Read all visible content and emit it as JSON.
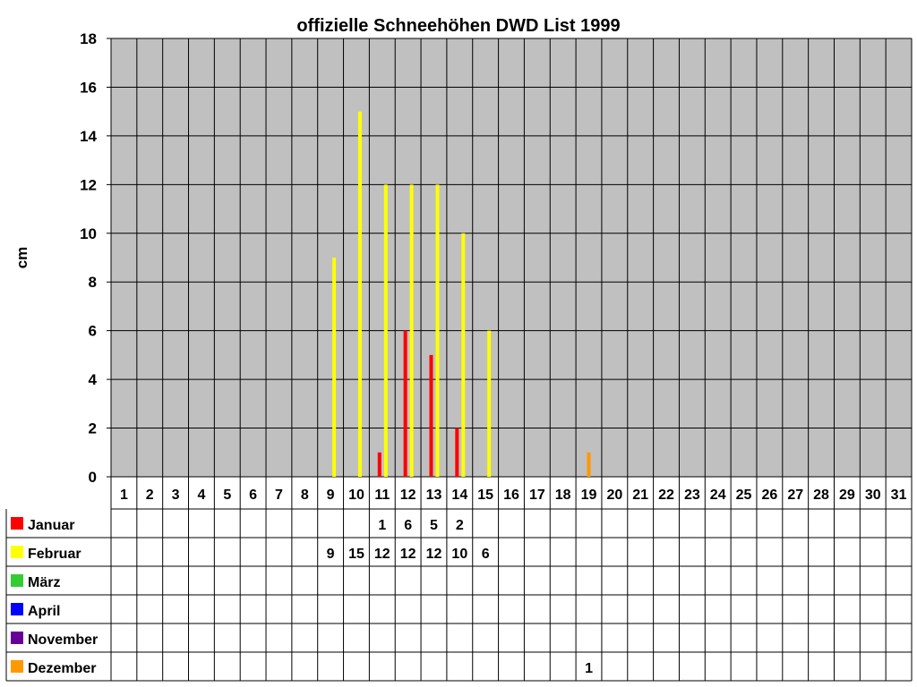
{
  "chart_data": {
    "type": "bar",
    "title": "offizielle Schneehöhen DWD List 1999",
    "ylabel": "cm",
    "xlabel": "",
    "ylim": [
      0,
      18
    ],
    "yticks": [
      0,
      2,
      4,
      6,
      8,
      10,
      12,
      14,
      16,
      18
    ],
    "grid": true,
    "legend_placement": "data-table-left",
    "categories": [
      "1",
      "2",
      "3",
      "4",
      "5",
      "6",
      "7",
      "8",
      "9",
      "10",
      "11",
      "12",
      "13",
      "14",
      "15",
      "16",
      "17",
      "18",
      "19",
      "20",
      "21",
      "22",
      "23",
      "24",
      "25",
      "26",
      "27",
      "28",
      "29",
      "30",
      "31"
    ],
    "series": [
      {
        "name": "Januar",
        "color": "#ff0000",
        "values": [
          null,
          null,
          null,
          null,
          null,
          null,
          null,
          null,
          null,
          null,
          1,
          6,
          5,
          2,
          null,
          null,
          null,
          null,
          null,
          null,
          null,
          null,
          null,
          null,
          null,
          null,
          null,
          null,
          null,
          null,
          null
        ]
      },
      {
        "name": "Februar",
        "color": "#ffff00",
        "values": [
          null,
          null,
          null,
          null,
          null,
          null,
          null,
          null,
          9,
          15,
          12,
          12,
          12,
          10,
          6,
          null,
          null,
          null,
          null,
          null,
          null,
          null,
          null,
          null,
          null,
          null,
          null,
          null,
          null,
          null,
          null
        ]
      },
      {
        "name": "März",
        "color": "#33cc33",
        "values": [
          null,
          null,
          null,
          null,
          null,
          null,
          null,
          null,
          null,
          null,
          null,
          null,
          null,
          null,
          null,
          null,
          null,
          null,
          null,
          null,
          null,
          null,
          null,
          null,
          null,
          null,
          null,
          null,
          null,
          null,
          null
        ]
      },
      {
        "name": "April",
        "color": "#0000ff",
        "values": [
          null,
          null,
          null,
          null,
          null,
          null,
          null,
          null,
          null,
          null,
          null,
          null,
          null,
          null,
          null,
          null,
          null,
          null,
          null,
          null,
          null,
          null,
          null,
          null,
          null,
          null,
          null,
          null,
          null,
          null,
          null
        ]
      },
      {
        "name": "November",
        "color": "#660099",
        "values": [
          null,
          null,
          null,
          null,
          null,
          null,
          null,
          null,
          null,
          null,
          null,
          null,
          null,
          null,
          null,
          null,
          null,
          null,
          null,
          null,
          null,
          null,
          null,
          null,
          null,
          null,
          null,
          null,
          null,
          null,
          null
        ]
      },
      {
        "name": "Dezember",
        "color": "#ff9900",
        "values": [
          null,
          null,
          null,
          null,
          null,
          null,
          null,
          null,
          null,
          null,
          null,
          null,
          null,
          null,
          null,
          null,
          null,
          null,
          1,
          null,
          null,
          null,
          null,
          null,
          null,
          null,
          null,
          null,
          null,
          null,
          null
        ]
      }
    ],
    "plot_background": "#c0c0c0",
    "grid_color": "#000000"
  }
}
